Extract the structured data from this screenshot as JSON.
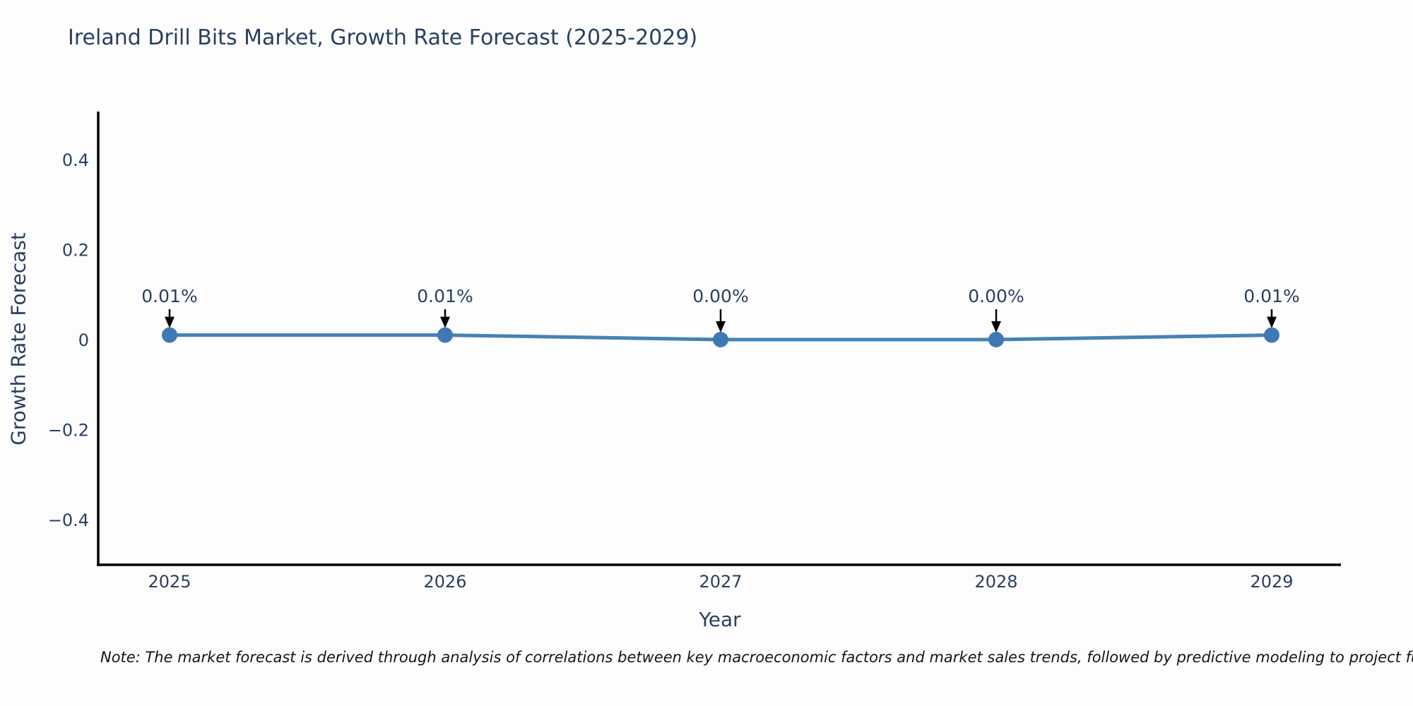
{
  "note": "Note: The market forecast is derived through analysis of correlations between key macroeconomic factors and market sales trends, followed by predictive modeling to project future sa",
  "chart_data": {
    "type": "line",
    "title": "Ireland Drill Bits Market, Growth Rate Forecast (2025-2029)",
    "xlabel": "Year",
    "ylabel": "Growth Rate Forecast",
    "categories": [
      "2025",
      "2026",
      "2027",
      "2028",
      "2029"
    ],
    "values": [
      0.01,
      0.01,
      0.0,
      0.0,
      0.01
    ],
    "point_labels": [
      "0.01%",
      "0.01%",
      "0.00%",
      "0.00%",
      "0.01%"
    ],
    "yticks": [
      0.4,
      0.2,
      0,
      -0.2,
      -0.4
    ],
    "ylim": [
      -0.5,
      0.5
    ],
    "grid": false,
    "legend": "none",
    "line_color": "#4682b4",
    "marker_color": "#3e79b4",
    "annotation_arrow_color": "#000000",
    "axis_color": "#000000",
    "label_color": "#2a3f5f"
  }
}
